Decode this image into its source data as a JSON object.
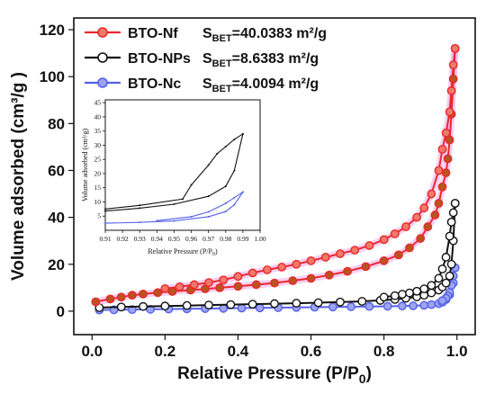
{
  "chart_data": [
    {
      "type": "line",
      "xlabel": "Relative Pressure (P/P",
      "xlabel_sub": "0",
      "xlabel_end": ")",
      "ylabel": "Volume adsorbed (cm³/g )",
      "xlim": [
        -0.05,
        1.05
      ],
      "ylim": [
        -10,
        125
      ],
      "x_ticks": [
        0.0,
        0.2,
        0.4,
        0.6,
        0.8,
        1.0
      ],
      "x_tick_labels": [
        "0.0",
        "0.2",
        "0.4",
        "0.6",
        "0.8",
        "1.0"
      ],
      "y_ticks": [
        0,
        20,
        40,
        60,
        80,
        100,
        120
      ],
      "y_tick_labels": [
        "0",
        "20",
        "40",
        "60",
        "80",
        "100",
        "120"
      ],
      "legend_position": "top-left",
      "series": [
        {
          "name": "BTO-Nf",
          "sbet_label": "S",
          "sbet_sub": "BET",
          "sbet_value": "=40.0383 m²/g",
          "color": "#e8282c",
          "marker_fill": "#f07a6a",
          "glow": "#f0a8e8",
          "adsorption": {
            "x": [
              0.01,
              0.05,
              0.08,
              0.11,
              0.14,
              0.18,
              0.22,
              0.27,
              0.31,
              0.35,
              0.4,
              0.45,
              0.5,
              0.55,
              0.6,
              0.65,
              0.7,
              0.75,
              0.8,
              0.84,
              0.87,
              0.9,
              0.92,
              0.94,
              0.95,
              0.96,
              0.97,
              0.975,
              0.98,
              0.985,
              0.99,
              0.995
            ],
            "y": [
              4,
              5.2,
              6,
              6.8,
              7.3,
              7.9,
              8.4,
              9,
              9.5,
              10,
              10.6,
              11.3,
              12,
              13,
              14,
              15.4,
              17,
              19,
              21.5,
              24,
              27,
              31,
              36,
              41,
              46,
              53,
              59,
              65,
              73,
              84,
              99,
              112
            ]
          },
          "desorption": {
            "x": [
              0.995,
              0.99,
              0.985,
              0.98,
              0.97,
              0.96,
              0.95,
              0.93,
              0.91,
              0.89,
              0.86,
              0.83,
              0.8,
              0.76,
              0.72,
              0.68,
              0.64,
              0.6,
              0.56,
              0.52,
              0.48,
              0.44,
              0.4,
              0.36,
              0.32,
              0.28,
              0.24,
              0.2
            ],
            "y": [
              112,
              105,
              94,
              85,
              76,
              69,
              60,
              50,
              44,
              40,
              36,
              33,
              30.5,
              28,
              26,
              24.5,
              23,
              21.5,
              20,
              18.8,
              17.6,
              16.3,
              14.8,
              13.3,
              12.2,
              11.3,
              10.4,
              9.6
            ]
          }
        },
        {
          "name": "BTO-NPs",
          "sbet_label": "S",
          "sbet_sub": "BET",
          "sbet_value": "=8.6383 m²/g",
          "color": "#111111",
          "marker_fill": "#ffffff",
          "glow": "",
          "adsorption": {
            "x": [
              0.02,
              0.08,
              0.14,
              0.2,
              0.26,
              0.32,
              0.38,
              0.44,
              0.5,
              0.56,
              0.62,
              0.68,
              0.74,
              0.79,
              0.83,
              0.86,
              0.89,
              0.91,
              0.93,
              0.95,
              0.96,
              0.97,
              0.98,
              0.985,
              0.99,
              0.995
            ],
            "y": [
              1.5,
              1.8,
              2,
              2.2,
              2.4,
              2.6,
              2.8,
              3,
              3.2,
              3.4,
              3.6,
              3.9,
              4.2,
              4.6,
              5,
              5.5,
              6.1,
              6.8,
              7.8,
              9,
              10.3,
              12,
              15,
              20,
              30,
              46
            ]
          },
          "desorption": {
            "x": [
              0.995,
              0.99,
              0.985,
              0.98,
              0.97,
              0.96,
              0.95,
              0.93,
              0.91,
              0.89,
              0.87,
              0.85,
              0.83,
              0.8
            ],
            "y": [
              46,
              42,
              38,
              32,
              23,
              18,
              14,
              11,
              9.5,
              8.5,
              7.8,
              7.2,
              6.6,
              6
            ]
          }
        },
        {
          "name": "BTO-Nc",
          "sbet_label": "S",
          "sbet_sub": "BET",
          "sbet_value": "=4.0094 m²/g",
          "color": "#5561e8",
          "marker_fill": "#9ea4f2",
          "glow": "",
          "adsorption": {
            "x": [
              0.02,
              0.06,
              0.11,
              0.16,
              0.21,
              0.26,
              0.31,
              0.36,
              0.41,
              0.46,
              0.51,
              0.56,
              0.61,
              0.66,
              0.71,
              0.76,
              0.81,
              0.85,
              0.88,
              0.91,
              0.93,
              0.95,
              0.96,
              0.97,
              0.98,
              0.99,
              0.995
            ],
            "y": [
              0.5,
              0.6,
              0.7,
              0.8,
              0.9,
              1,
              1.1,
              1.2,
              1.3,
              1.4,
              1.5,
              1.6,
              1.7,
              1.8,
              1.9,
              2,
              2.1,
              2.2,
              2.3,
              2.5,
              2.8,
              3.2,
              3.8,
              5,
              7,
              12,
              18.5
            ]
          },
          "desorption": {
            "x": [
              0.995,
              0.99,
              0.985,
              0.98,
              0.975,
              0.97,
              0.96
            ],
            "y": [
              18.5,
              15,
              11,
              8,
              6.5,
              5.5,
              4.5
            ]
          }
        }
      ]
    },
    {
      "type": "line",
      "xlabel": "Relative Pressure (P/P",
      "xlabel_sub": "0",
      "xlabel_end": ")",
      "ylabel": "Volume adsorbed (cm³/g)",
      "xlim": [
        0.91,
        1.0
      ],
      "ylim": [
        0,
        46
      ],
      "x_ticks": [
        0.91,
        0.92,
        0.93,
        0.94,
        0.95,
        0.96,
        0.97,
        0.98,
        0.99,
        1.0
      ],
      "x_tick_labels": [
        "0.91",
        "0.92",
        "0.93",
        "0.94",
        "0.95",
        "0.96",
        "0.97",
        "0.98",
        "0.99",
        "1.00"
      ],
      "y_ticks": [
        5,
        10,
        15,
        20,
        25,
        30,
        35,
        40,
        45
      ],
      "y_tick_labels": [
        "5",
        "10",
        "15",
        "20",
        "25",
        "30",
        "35",
        "40",
        "45"
      ],
      "series": [
        {
          "color": "#111111",
          "adsorption": {
            "x": [
              0.91,
              0.93,
              0.95,
              0.97,
              0.98,
              0.985,
              0.99
            ],
            "y": [
              6.8,
              7.8,
              9.2,
              12,
              15.5,
              21,
              34
            ]
          },
          "desorption": {
            "x": [
              0.99,
              0.985,
              0.98,
              0.975,
              0.97,
              0.96,
              0.955,
              0.93,
              0.91
            ],
            "y": [
              34,
              32,
              29.5,
              27,
              23,
              16,
              11,
              8.8,
              7.5
            ]
          }
        },
        {
          "color": "#5561e8",
          "adsorption": {
            "x": [
              0.91,
              0.93,
              0.95,
              0.97,
              0.98,
              0.985,
              0.99
            ],
            "y": [
              2.5,
              2.8,
              3.3,
              4.8,
              6.6,
              9,
              13.5
            ]
          },
          "desorption": {
            "x": [
              0.99,
              0.985,
              0.98,
              0.97,
              0.96,
              0.94
            ],
            "y": [
              13.5,
              11.5,
              9.5,
              6.5,
              4.8,
              3.4
            ]
          }
        }
      ]
    }
  ]
}
